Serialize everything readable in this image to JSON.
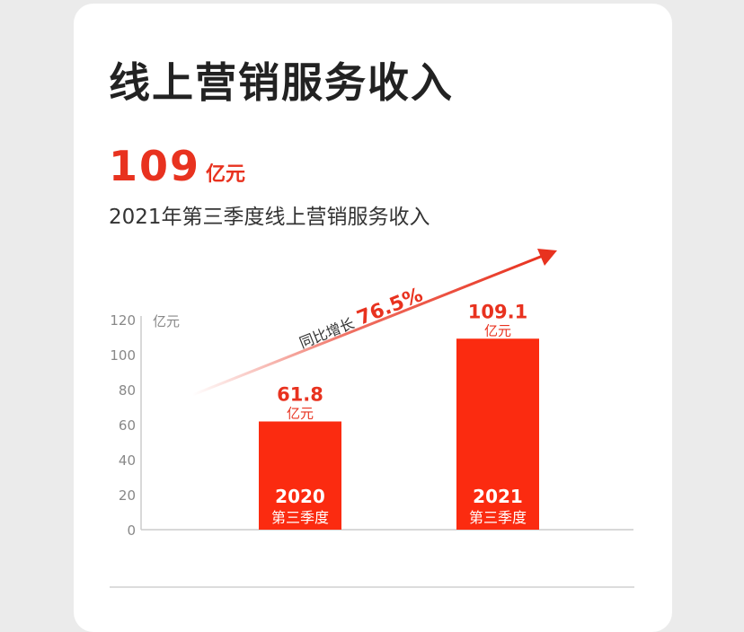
{
  "title": "线上营销服务收入",
  "headline": {
    "value": "109",
    "unit": "亿元"
  },
  "subtitle": "2021年第三季度线上营销服务收入",
  "growth": {
    "label": "同比增长",
    "value": "76.5%"
  },
  "colors": {
    "accent": "#e8321f",
    "bar": "#fb2b10",
    "text": "#222222",
    "axis": "#999999"
  },
  "chart_data": {
    "type": "bar",
    "ylabel": "亿元",
    "ylim": [
      0,
      120
    ],
    "yticks": [
      0,
      20,
      40,
      60,
      80,
      100,
      120
    ],
    "categories": [
      "2020",
      "2021"
    ],
    "category_sublabels": [
      "第三季度",
      "第三季度"
    ],
    "series": [
      {
        "values": [
          61.8,
          109.1
        ],
        "labels": [
          "61.8",
          "109.1"
        ],
        "units": [
          "亿元",
          "亿元"
        ]
      }
    ],
    "grid": false
  }
}
